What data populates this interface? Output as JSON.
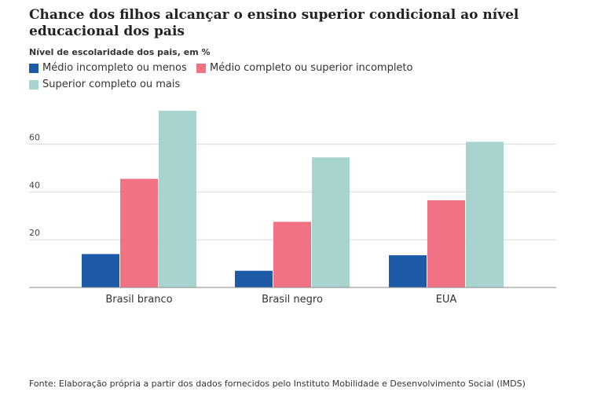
{
  "chart_data": {
    "type": "bar",
    "title": "Chance dos filhos alcançar o ensino superior condicional ao nível educacional dos pais",
    "subtitle": "Nível de escolaridade dos pais, em %",
    "categories": [
      "Brasil branco",
      "Brasil negro",
      "EUA"
    ],
    "series": [
      {
        "name": "Médio incompleto ou menos",
        "color": "#1d5ba6",
        "values": [
          14,
          7,
          13.5
        ]
      },
      {
        "name": "Médio completo ou superior incompleto",
        "color": "#f07284",
        "values": [
          45.5,
          27.5,
          36.5
        ]
      },
      {
        "name": "Superior completo ou mais",
        "color": "#a7d4cf",
        "values": [
          74,
          54.5,
          61
        ]
      }
    ],
    "yticks": [
      20,
      40,
      60
    ],
    "ylim": [
      0,
      74
    ],
    "grid": true,
    "legend_position": "top-left"
  },
  "footer": {
    "source": "Fonte: Elaboração própria a partir dos dados fornecidos pelo Instituto Mobilidade e Desenvolvimento Social (IMDS)"
  }
}
